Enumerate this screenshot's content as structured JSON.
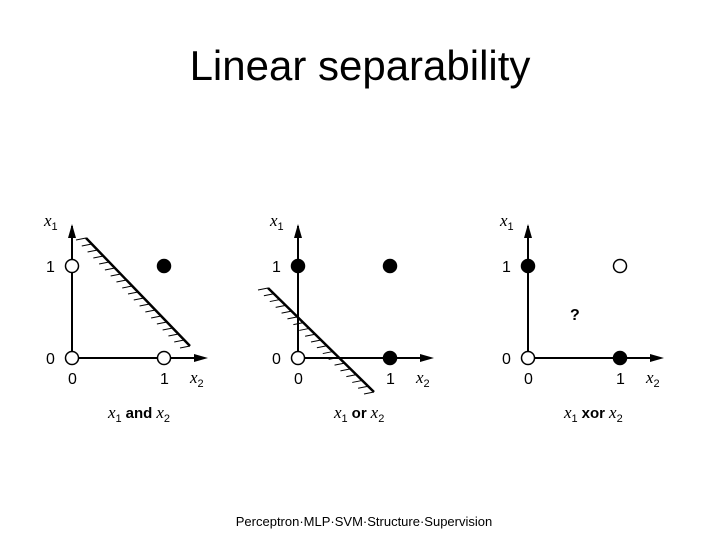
{
  "slide": {
    "title": "Linear separability",
    "footer": "Perceptron·MLP·SVM·Structure·Supervision"
  },
  "axes": {
    "x_var": "x",
    "x_sub": "2",
    "y_var": "x",
    "y_sub": "1",
    "tick_zero": "0",
    "tick_one": "1"
  },
  "panels": [
    {
      "id": "and",
      "caption": {
        "a_var": "x",
        "a_sub": "1",
        "op": "and",
        "b_var": "x",
        "b_sub": "2"
      },
      "points": [
        {
          "x2": 0,
          "x1": 0,
          "filled": false
        },
        {
          "x2": 1,
          "x1": 0,
          "filled": false
        },
        {
          "x2": 0,
          "x1": 1,
          "filled": false
        },
        {
          "x2": 1,
          "x1": 1,
          "filled": true
        }
      ],
      "separable": true
    },
    {
      "id": "or",
      "caption": {
        "a_var": "x",
        "a_sub": "1",
        "op": "or",
        "b_var": "x",
        "b_sub": "2"
      },
      "points": [
        {
          "x2": 0,
          "x1": 0,
          "filled": false
        },
        {
          "x2": 1,
          "x1": 0,
          "filled": true
        },
        {
          "x2": 0,
          "x1": 1,
          "filled": true
        },
        {
          "x2": 1,
          "x1": 1,
          "filled": true
        }
      ],
      "separable": true
    },
    {
      "id": "xor",
      "caption": {
        "a_var": "x",
        "a_sub": "1",
        "op": "xor",
        "b_var": "x",
        "b_sub": "2"
      },
      "points": [
        {
          "x2": 0,
          "x1": 0,
          "filled": false
        },
        {
          "x2": 1,
          "x1": 0,
          "filled": true
        },
        {
          "x2": 0,
          "x1": 1,
          "filled": true
        },
        {
          "x2": 1,
          "x1": 1,
          "filled": false
        }
      ],
      "separable": false,
      "question_mark": "?"
    }
  ]
}
